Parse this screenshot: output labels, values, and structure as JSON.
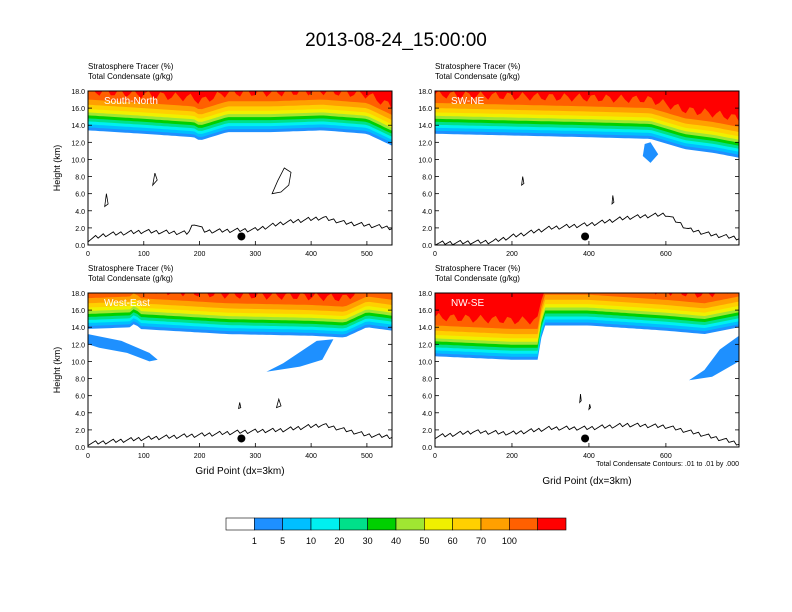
{
  "figure": {
    "title": "2013-08-24_15:00:00",
    "footnote": "Total Condensate Contours: .01 to .01 by .000"
  },
  "colors": {
    "levels": [
      "#ffffff",
      "#1e90ff",
      "#00bfff",
      "#00f0f0",
      "#00e08a",
      "#00d000",
      "#a0e632",
      "#f0f000",
      "#ffd000",
      "#ffa000",
      "#ff6000",
      "#ff0000"
    ],
    "labelText": "#ffffff"
  },
  "colorbar": {
    "tick_labels": [
      "1",
      "5",
      "10",
      "20",
      "30",
      "40",
      "50",
      "60",
      "70",
      "100"
    ]
  },
  "chart_data": [
    {
      "type": "contour",
      "panel": "South-North",
      "title_line1": "Stratosphere Tracer   (%)",
      "title_line2": "Total Condensate   (g/kg)",
      "ylabel": "Height (km)",
      "xlabel": "",
      "xlim": [
        0,
        545
      ],
      "ylim": [
        0,
        18
      ],
      "xticks": [
        0,
        100,
        200,
        300,
        400,
        500
      ],
      "yticks": [
        "0.0",
        "2.0",
        "4.0",
        "6.0",
        "8.0",
        "10.0",
        "12.0",
        "14.0",
        "16.0",
        "18.0"
      ],
      "tracer_base_km": [
        [
          0,
          13.4
        ],
        [
          100,
          13.0
        ],
        [
          190,
          12.6
        ],
        [
          200,
          12.2
        ],
        [
          250,
          13.2
        ],
        [
          330,
          13.2
        ],
        [
          420,
          13.4
        ],
        [
          500,
          13.0
        ],
        [
          545,
          11.6
        ]
      ],
      "terrain_km": [
        [
          0,
          0.6
        ],
        [
          30,
          1.2
        ],
        [
          100,
          1.6
        ],
        [
          180,
          1.4
        ],
        [
          190,
          2.6
        ],
        [
          210,
          1.6
        ],
        [
          300,
          1.8
        ],
        [
          350,
          2.6
        ],
        [
          420,
          3.2
        ],
        [
          460,
          2.6
        ],
        [
          545,
          2.0
        ]
      ],
      "marker": {
        "x": 275,
        "y": 1.0
      },
      "condensate_contours": [
        [
          [
            330,
            6.0
          ],
          [
            340,
            7.5
          ],
          [
            352,
            9.0
          ],
          [
            364,
            8.5
          ],
          [
            360,
            7.0
          ],
          [
            346,
            6.2
          ]
        ],
        [
          [
            116,
            7.0
          ],
          [
            120,
            8.4
          ],
          [
            124,
            7.6
          ]
        ],
        [
          [
            30,
            4.5
          ],
          [
            33,
            6.0
          ],
          [
            36,
            4.8
          ]
        ]
      ],
      "extra_blobs": []
    },
    {
      "type": "contour",
      "panel": "SW-NE",
      "title_line1": "Stratosphere Tracer   (%)",
      "title_line2": "Total Condensate   (g/kg)",
      "ylabel": "",
      "xlabel": "",
      "xlim": [
        0,
        790
      ],
      "ylim": [
        0,
        18
      ],
      "xticks": [
        0,
        200,
        400,
        600
      ],
      "yticks": [
        "0.0",
        "2.0",
        "4.0",
        "6.0",
        "8.0",
        "10.0",
        "12.0",
        "14.0",
        "16.0",
        "18.0"
      ],
      "tracer_base_km": [
        [
          0,
          13.0
        ],
        [
          200,
          12.8
        ],
        [
          400,
          12.6
        ],
        [
          560,
          12.4
        ],
        [
          650,
          11.2
        ],
        [
          720,
          10.8
        ],
        [
          790,
          10.2
        ]
      ],
      "terrain_km": [
        [
          0,
          0.2
        ],
        [
          150,
          0.4
        ],
        [
          200,
          1.0
        ],
        [
          300,
          2.0
        ],
        [
          400,
          2.4
        ],
        [
          500,
          3.2
        ],
        [
          600,
          3.6
        ],
        [
          660,
          1.8
        ],
        [
          720,
          1.2
        ],
        [
          790,
          0.8
        ]
      ],
      "marker": {
        "x": 390,
        "y": 1.0
      },
      "condensate_contours": [
        [
          [
            225,
            7.0
          ],
          [
            228,
            8.0
          ],
          [
            231,
            7.2
          ]
        ],
        [
          [
            460,
            4.8
          ],
          [
            462,
            5.8
          ],
          [
            465,
            5.0
          ]
        ]
      ],
      "extra_blobs": [
        {
          "level": 1,
          "pts": [
            [
              560,
              12.0
            ],
            [
              580,
              10.6
            ],
            [
              560,
              9.6
            ],
            [
              540,
              10.4
            ],
            [
              545,
              11.8
            ]
          ]
        }
      ]
    },
    {
      "type": "contour",
      "panel": "West-East",
      "title_line1": "Stratosphere Tracer   (%)",
      "title_line2": "Total Condensate   (g/kg)",
      "ylabel": "Height (km)",
      "xlabel": "Grid Point (dx=3km)",
      "xlim": [
        0,
        545
      ],
      "ylim": [
        0,
        18
      ],
      "xticks": [
        0,
        100,
        200,
        300,
        400,
        500
      ],
      "yticks": [
        "0.0",
        "2.0",
        "4.0",
        "6.0",
        "8.0",
        "10.0",
        "12.0",
        "14.0",
        "16.0",
        "18.0"
      ],
      "tracer_base_km": [
        [
          0,
          13.8
        ],
        [
          80,
          14.0
        ],
        [
          85,
          15.0
        ],
        [
          90,
          13.8
        ],
        [
          250,
          13.2
        ],
        [
          400,
          13.0
        ],
        [
          460,
          12.8
        ],
        [
          500,
          14.0
        ],
        [
          545,
          13.6
        ]
      ],
      "terrain_km": [
        [
          0,
          0.4
        ],
        [
          100,
          1.0
        ],
        [
          200,
          1.4
        ],
        [
          280,
          1.8
        ],
        [
          350,
          2.0
        ],
        [
          420,
          2.6
        ],
        [
          500,
          1.4
        ],
        [
          545,
          1.2
        ]
      ],
      "marker": {
        "x": 275,
        "y": 1.0
      },
      "condensate_contours": [
        [
          [
            270,
            4.5
          ],
          [
            272,
            5.2
          ],
          [
            274,
            4.6
          ]
        ],
        [
          [
            338,
            4.6
          ],
          [
            342,
            5.6
          ],
          [
            346,
            4.8
          ]
        ]
      ],
      "extra_blobs": [
        {
          "level": 1,
          "pts": [
            [
              0,
              13.2
            ],
            [
              60,
              12.4
            ],
            [
              110,
              11.0
            ],
            [
              125,
              10.2
            ],
            [
              110,
              10.0
            ],
            [
              70,
              11.0
            ],
            [
              20,
              11.6
            ],
            [
              0,
              12.0
            ]
          ]
        },
        {
          "level": 1,
          "pts": [
            [
              440,
              12.6
            ],
            [
              420,
              10.2
            ],
            [
              380,
              9.4
            ],
            [
              320,
              8.8
            ],
            [
              350,
              9.8
            ],
            [
              410,
              12.4
            ]
          ]
        }
      ]
    },
    {
      "type": "contour",
      "panel": "NW-SE",
      "title_line1": "Stratosphere Tracer   (%)",
      "title_line2": "Total Condensate   (g/kg)",
      "ylabel": "",
      "xlabel": "Grid Point (dx=3km)",
      "xlim": [
        0,
        790
      ],
      "ylim": [
        0,
        18
      ],
      "xticks": [
        0,
        200,
        400,
        600
      ],
      "yticks": [
        "0.0",
        "2.0",
        "4.0",
        "6.0",
        "8.0",
        "10.0",
        "12.0",
        "14.0",
        "16.0",
        "18.0"
      ],
      "tracer_base_km": [
        [
          0,
          10.6
        ],
        [
          200,
          10.2
        ],
        [
          270,
          10.2
        ],
        [
          280,
          14.2
        ],
        [
          400,
          14.2
        ],
        [
          600,
          13.6
        ],
        [
          700,
          13.2
        ],
        [
          790,
          14.0
        ]
      ],
      "terrain_km": [
        [
          0,
          1.2
        ],
        [
          100,
          1.8
        ],
        [
          200,
          1.6
        ],
        [
          300,
          2.2
        ],
        [
          400,
          2.2
        ],
        [
          500,
          2.6
        ],
        [
          600,
          2.4
        ],
        [
          700,
          1.4
        ],
        [
          790,
          0.4
        ]
      ],
      "marker": {
        "x": 390,
        "y": 1.0
      },
      "condensate_contours": [
        [
          [
            376,
            5.2
          ],
          [
            378,
            6.2
          ],
          [
            380,
            5.4
          ]
        ],
        [
          [
            400,
            4.4
          ],
          [
            402,
            5.0
          ],
          [
            404,
            4.6
          ]
        ]
      ],
      "extra_blobs": [
        {
          "level": 1,
          "pts": [
            [
              790,
              13.0
            ],
            [
              740,
              11.4
            ],
            [
              700,
              9.0
            ],
            [
              660,
              7.8
            ],
            [
              720,
              8.2
            ],
            [
              790,
              10.0
            ]
          ]
        }
      ]
    }
  ]
}
